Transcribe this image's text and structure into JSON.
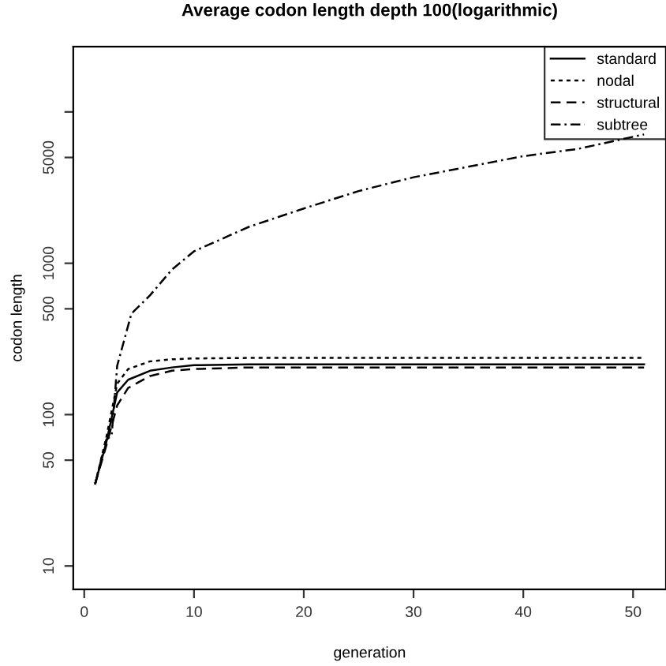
{
  "chart_data": {
    "type": "line",
    "title": "Average codon length depth 100(logarithmic)",
    "xlabel": "generation",
    "ylabel": "codon length",
    "log": "y",
    "xlim": [
      -1,
      53
    ],
    "xticks": [
      0,
      10,
      20,
      30,
      40,
      50
    ],
    "ylim": [
      7,
      27000
    ],
    "yticks": [
      10,
      50,
      100,
      500,
      1000,
      5000,
      {
        "value": 10000,
        "label": null
      }
    ],
    "grid": false,
    "legend": "top right",
    "marker": "none",
    "series": [
      {
        "name": "standard",
        "color": "#000000",
        "line_style": "solid",
        "x": [
          1,
          2,
          3,
          4,
          6,
          8,
          10,
          15,
          20,
          30,
          40,
          51
        ],
        "values": [
          35,
          65,
          140,
          170,
          195,
          205,
          212,
          215,
          215,
          215,
          215,
          215
        ]
      },
      {
        "name": "nodal",
        "color": "#000000",
        "line_style": "dotted",
        "x": [
          1,
          2,
          3,
          4,
          6,
          8,
          10,
          15,
          20,
          30,
          40,
          51
        ],
        "values": [
          35,
          70,
          160,
          200,
          225,
          232,
          235,
          237,
          237,
          237,
          237,
          237
        ]
      },
      {
        "name": "structural",
        "color": "#000000",
        "line_style": "dashed",
        "x": [
          1,
          2,
          3,
          4,
          6,
          8,
          10,
          15,
          20,
          30,
          40,
          51
        ],
        "values": [
          35,
          62,
          115,
          150,
          180,
          195,
          200,
          205,
          205,
          205,
          205,
          205
        ]
      },
      {
        "name": "subtree",
        "color": "#000000",
        "line_style": "dashdot",
        "x": [
          1,
          2,
          2.5,
          3,
          4.3,
          6,
          8,
          10,
          15,
          20,
          25,
          30,
          40,
          45,
          51
        ],
        "values": [
          35,
          68,
          73,
          210,
          465,
          615,
          910,
          1200,
          1740,
          2300,
          3000,
          3700,
          5100,
          5700,
          7100
        ]
      }
    ]
  }
}
